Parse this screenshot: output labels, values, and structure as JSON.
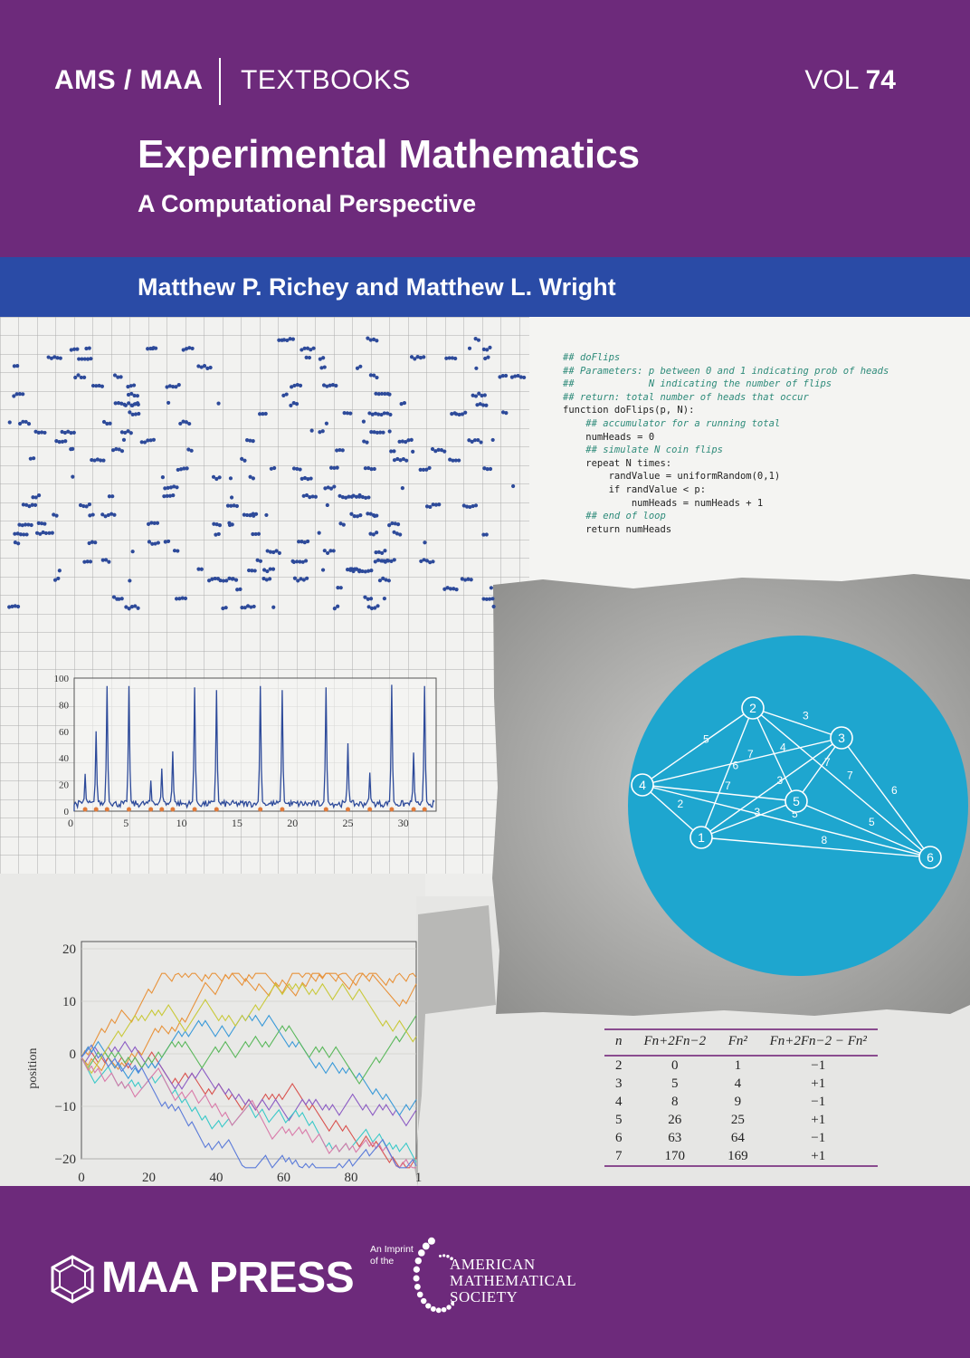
{
  "series": {
    "left": "AMS / MAA",
    "right": "TEXTBOOKS"
  },
  "volume": {
    "label": "VOL",
    "number": "74"
  },
  "title": "Experimental Mathematics",
  "subtitle": "A Computational Perspective",
  "authors": "Matthew P. Richey and Matthew L. Wright",
  "code_lines": [
    "## doFlips",
    "## Parameters: p between 0 and 1 indicating prob of heads",
    "##             N indicating the number of flips",
    "## return: total number of heads that occur",
    "function doFlips(p, N):",
    "    ## accumulator for a running total",
    "    numHeads = 0",
    "    ## simulate N coin flips",
    "    repeat N times:",
    "        randValue = uniformRandom(0,1)",
    "        if randValue < p:",
    "            numHeads = numHeads + 1",
    "    ## end of loop",
    "    return numHeads"
  ],
  "spectrum_axes": {
    "y_ticks": [
      "100",
      "80",
      "60",
      "40",
      "20",
      "0"
    ],
    "x_ticks": [
      "0",
      "5",
      "10",
      "15",
      "20",
      "25",
      "30"
    ]
  },
  "walk_axes": {
    "ylabel": "position",
    "y_ticks": [
      "20",
      "10",
      "0",
      "−10",
      "−20"
    ],
    "x_ticks": [
      "0",
      "20",
      "40",
      "60",
      "80",
      "1"
    ]
  },
  "graph": {
    "nodes": [
      "1",
      "2",
      "3",
      "4",
      "5",
      "6"
    ],
    "edge_weights": [
      "3",
      "5",
      "4",
      "7",
      "6",
      "3",
      "7",
      "7",
      "6",
      "2",
      "5",
      "3",
      "8",
      "5",
      "7"
    ]
  },
  "fib_table": {
    "headers": [
      "n",
      "Fn+2Fn−2",
      "Fn²",
      "Fn+2Fn−2 − Fn²"
    ],
    "rows": [
      [
        "2",
        "0",
        "1",
        "−1"
      ],
      [
        "3",
        "5",
        "4",
        "+1"
      ],
      [
        "4",
        "8",
        "9",
        "−1"
      ],
      [
        "5",
        "26",
        "25",
        "+1"
      ],
      [
        "6",
        "63",
        "64",
        "−1"
      ],
      [
        "7",
        "170",
        "169",
        "+1"
      ]
    ]
  },
  "publisher": {
    "name": "MAA PRESS",
    "imprint_line1": "An Imprint",
    "imprint_line2": "of the",
    "ams_line1": "AMERICAN",
    "ams_line2": "MATHEMATICAL",
    "ams_line3": "SOCIETY"
  },
  "colors": {
    "purple": "#6d2a7b",
    "blue_band": "#2a4ba6",
    "circle": "#1ea6cf",
    "plot_blue": "#2d4a9a"
  }
}
